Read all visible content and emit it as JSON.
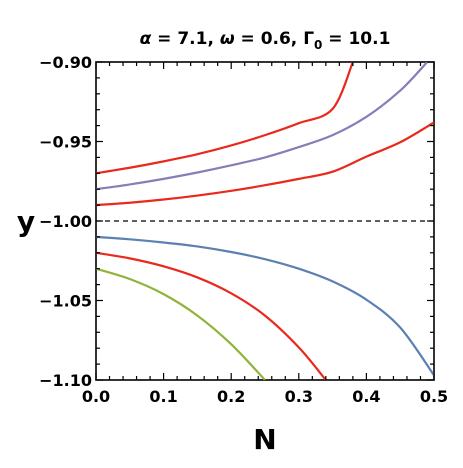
{
  "chart_data": {
    "type": "line",
    "title": "α = 7.1, ω = 0.6, Γ₀ = 10.1",
    "title_parts": {
      "alpha": "α",
      "alpha_value": " = 7.1, ",
      "omega": "ω",
      "omega_value": " = 0.6, ",
      "gamma": "Γ",
      "gamma_subscript": "0",
      "gamma_value": " = 10.1"
    },
    "xlabel": "N",
    "ylabel": "y",
    "xlim": [
      0.0,
      0.5
    ],
    "ylim": [
      -1.1,
      -0.9
    ],
    "x_ticks": [
      {
        "value": 0.0,
        "label": "0.0"
      },
      {
        "value": 0.1,
        "label": "0.1"
      },
      {
        "value": 0.2,
        "label": "0.2"
      },
      {
        "value": 0.3,
        "label": "0.3"
      },
      {
        "value": 0.4,
        "label": "0.4"
      },
      {
        "value": 0.5,
        "label": "0.5"
      }
    ],
    "y_ticks": [
      {
        "value": -0.9,
        "label": "−0.90"
      },
      {
        "value": -0.95,
        "label": "−0.95"
      },
      {
        "value": -1.0,
        "label": "−1.00"
      },
      {
        "value": -1.05,
        "label": "−1.05"
      },
      {
        "value": -1.1,
        "label": "−1.10"
      }
    ],
    "grid": false,
    "reference_line": {
      "y": -1.0,
      "style": "dashed",
      "color": "#000000"
    },
    "series": [
      {
        "color": "#e8291c",
        "x": [
          0.0,
          0.05,
          0.1,
          0.15,
          0.2,
          0.25,
          0.3,
          0.35,
          0.38
        ],
        "y": [
          -0.97,
          -0.9665,
          -0.9625,
          -0.958,
          -0.9525,
          -0.946,
          -0.9385,
          -0.9295,
          -0.9
        ]
      },
      {
        "color": "#8a7cb8",
        "x": [
          0.0,
          0.05,
          0.1,
          0.15,
          0.2,
          0.25,
          0.3,
          0.35,
          0.4,
          0.45,
          0.49
        ],
        "y": [
          -0.98,
          -0.977,
          -0.9735,
          -0.9695,
          -0.965,
          -0.96,
          -0.9535,
          -0.946,
          -0.9345,
          -0.918,
          -0.9
        ]
      },
      {
        "color": "#e8291c",
        "x": [
          0.0,
          0.05,
          0.1,
          0.15,
          0.2,
          0.25,
          0.3,
          0.35,
          0.4,
          0.45,
          0.5
        ],
        "y": [
          -0.99,
          -0.9885,
          -0.9865,
          -0.984,
          -0.981,
          -0.9775,
          -0.9735,
          -0.969,
          -0.9595,
          -0.9505,
          -0.938
        ]
      },
      {
        "color": "#5b80b2",
        "x": [
          0.0,
          0.05,
          0.1,
          0.15,
          0.2,
          0.25,
          0.3,
          0.35,
          0.4,
          0.45,
          0.5
        ],
        "y": [
          -1.01,
          -1.0115,
          -1.0135,
          -1.016,
          -1.0195,
          -1.024,
          -1.03,
          -1.038,
          -1.0495,
          -1.067,
          -1.097
        ]
      },
      {
        "color": "#e8291c",
        "x": [
          0.0,
          0.05,
          0.1,
          0.15,
          0.2,
          0.25,
          0.3,
          0.34
        ],
        "y": [
          -1.02,
          -1.0235,
          -1.0285,
          -1.0355,
          -1.0455,
          -1.0595,
          -1.0795,
          -1.1
        ]
      },
      {
        "color": "#8fb43a",
        "x": [
          0.0,
          0.05,
          0.1,
          0.15,
          0.2,
          0.25
        ],
        "y": [
          -1.03,
          -1.0365,
          -1.046,
          -1.0595,
          -1.0775,
          -1.1
        ]
      }
    ]
  }
}
